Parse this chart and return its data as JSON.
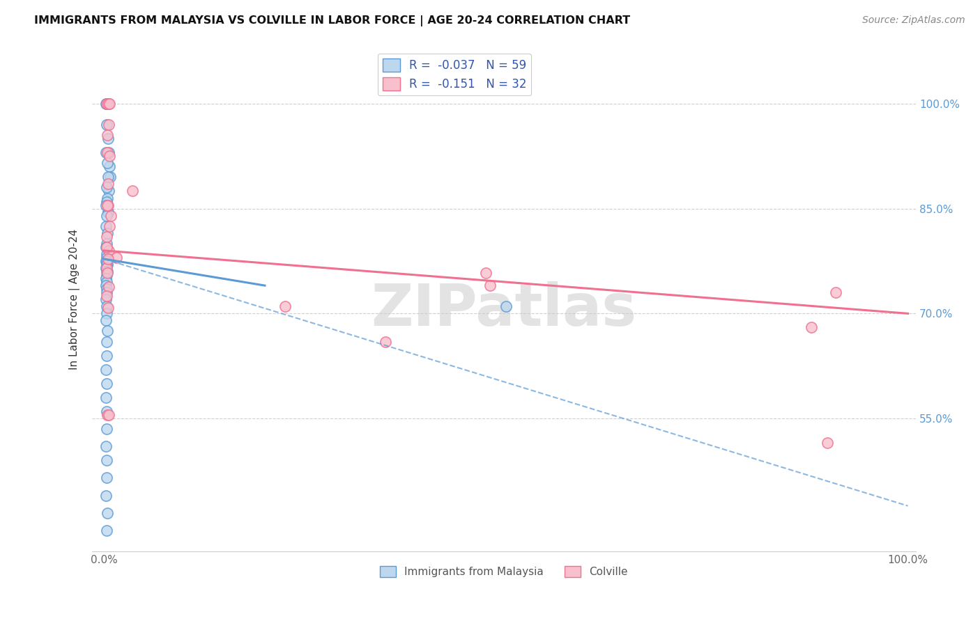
{
  "title": "IMMIGRANTS FROM MALAYSIA VS COLVILLE IN LABOR FORCE | AGE 20-24 CORRELATION CHART",
  "source": "Source: ZipAtlas.com",
  "ylabel": "In Labor Force | Age 20-24",
  "x_ticks": [
    0.0,
    20.0,
    40.0,
    60.0,
    80.0,
    100.0
  ],
  "x_tick_labels": [
    "0.0%",
    "",
    "",
    "",
    "",
    "100.0%"
  ],
  "y_tick_labels": [
    "100.0%",
    "85.0%",
    "70.0%",
    "55.0%"
  ],
  "y_tick_values": [
    1.0,
    0.85,
    0.7,
    0.55
  ],
  "xlim": [
    -1.5,
    101.0
  ],
  "ylim": [
    0.36,
    1.08
  ],
  "malaysia_color": "#5b9bd5",
  "malaysia_color_fill": "#bdd7ee",
  "colville_color": "#f07090",
  "colville_color_fill": "#f8c0cc",
  "malaysia_R": -0.037,
  "malaysia_N": 59,
  "colville_R": -0.151,
  "colville_N": 32,
  "background_color": "#ffffff",
  "legend_label_malaysia": "Immigrants from Malaysia",
  "legend_label_colville": "Colville",
  "malaysia_solid_line": [
    [
      0,
      20
    ],
    [
      0.778,
      0.74
    ]
  ],
  "malaysia_dashed_line": [
    [
      0,
      100
    ],
    [
      0.778,
      0.425
    ]
  ],
  "colville_solid_line": [
    [
      0,
      100
    ],
    [
      0.79,
      0.7
    ]
  ],
  "scatter_malaysia_x": [
    0.3,
    0.5,
    0.4,
    0.6,
    0.2,
    0.35,
    0.45,
    0.55,
    0.65,
    0.75,
    0.25,
    0.4,
    0.5,
    0.6,
    0.3,
    0.4,
    0.5,
    0.3,
    0.45,
    0.2,
    0.35,
    0.25,
    0.4,
    0.3,
    0.2,
    0.35,
    0.3,
    0.25,
    0.4,
    0.35,
    0.3,
    0.25,
    0.4,
    0.3,
    0.35,
    0.2,
    0.3,
    0.25,
    0.35,
    0.3,
    0.2,
    0.35,
    0.3,
    0.25,
    0.4,
    0.3,
    0.35,
    0.2,
    0.3,
    0.25,
    0.35,
    0.3,
    0.2,
    0.35,
    0.3,
    0.25,
    0.4,
    0.3,
    50.0
  ],
  "scatter_malaysia_y": [
    1.0,
    1.0,
    1.0,
    1.0,
    1.0,
    0.97,
    0.95,
    0.93,
    0.91,
    0.895,
    0.93,
    0.915,
    0.895,
    0.875,
    0.88,
    0.865,
    0.845,
    0.86,
    0.845,
    0.855,
    0.84,
    0.825,
    0.815,
    0.8,
    0.795,
    0.785,
    0.78,
    0.775,
    0.77,
    0.775,
    0.77,
    0.765,
    0.76,
    0.76,
    0.755,
    0.75,
    0.745,
    0.74,
    0.735,
    0.73,
    0.72,
    0.71,
    0.7,
    0.69,
    0.675,
    0.66,
    0.64,
    0.62,
    0.6,
    0.58,
    0.56,
    0.535,
    0.51,
    0.49,
    0.465,
    0.44,
    0.415,
    0.39,
    0.71
  ],
  "scatter_colville_x": [
    0.3,
    0.5,
    0.7,
    0.4,
    3.5,
    0.5,
    0.8,
    47.5,
    48.0,
    0.6,
    0.4,
    22.5,
    0.35,
    0.55,
    1.5,
    0.3,
    91.0,
    88.0,
    0.7,
    0.45,
    35.0,
    0.4,
    0.65,
    0.3,
    0.5,
    0.4,
    0.6,
    0.3,
    0.5,
    0.4,
    90.0,
    0.6
  ],
  "scatter_colville_y": [
    1.0,
    1.0,
    1.0,
    0.93,
    0.875,
    0.855,
    0.84,
    0.758,
    0.74,
    0.97,
    0.955,
    0.71,
    0.81,
    0.79,
    0.78,
    0.765,
    0.73,
    0.68,
    0.925,
    0.885,
    0.66,
    0.855,
    0.825,
    0.795,
    0.778,
    0.758,
    0.738,
    0.725,
    0.708,
    0.555,
    0.515,
    0.555
  ]
}
